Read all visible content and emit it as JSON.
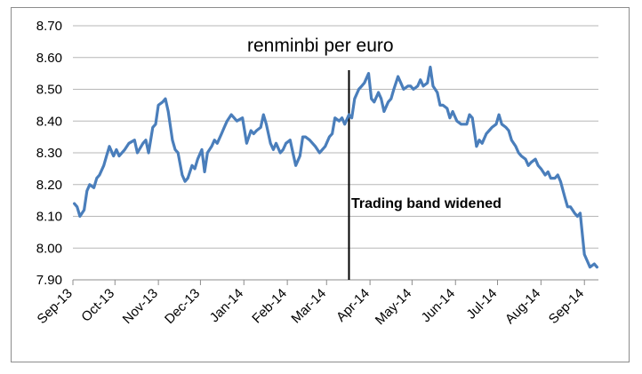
{
  "chart_data": {
    "type": "line",
    "title": "renminbi per euro",
    "xlabel": "",
    "ylabel": "",
    "ylim": [
      7.9,
      8.7
    ],
    "y_ticks": [
      "8.70",
      "8.60",
      "8.50",
      "8.40",
      "8.30",
      "8.20",
      "8.10",
      "8.00",
      "7.90"
    ],
    "x_ticks": [
      "Sep-13",
      "Oct-13",
      "Nov-13",
      "Dec-13",
      "Jan-14",
      "Feb-14",
      "Mar-14",
      "Apr-14",
      "May-14",
      "Jun-14",
      "Jul-14",
      "Aug-14",
      "Sep-14"
    ],
    "grid": true,
    "legend": "none",
    "annotation": {
      "label": "Trading band widened",
      "x": "2014-03-17"
    },
    "series": [
      {
        "color": "#4a7ebb",
        "points": [
          [
            "2013-09-02",
            8.14
          ],
          [
            "2013-09-04",
            8.13
          ],
          [
            "2013-09-06",
            8.1
          ],
          [
            "2013-09-09",
            8.12
          ],
          [
            "2013-09-11",
            8.18
          ],
          [
            "2013-09-13",
            8.2
          ],
          [
            "2013-09-16",
            8.19
          ],
          [
            "2013-09-18",
            8.22
          ],
          [
            "2013-09-20",
            8.23
          ],
          [
            "2013-09-23",
            8.26
          ],
          [
            "2013-09-25",
            8.29
          ],
          [
            "2013-09-27",
            8.32
          ],
          [
            "2013-09-30",
            8.29
          ],
          [
            "2013-10-02",
            8.31
          ],
          [
            "2013-10-04",
            8.29
          ],
          [
            "2013-10-08",
            8.31
          ],
          [
            "2013-10-11",
            8.33
          ],
          [
            "2013-10-15",
            8.34
          ],
          [
            "2013-10-17",
            8.3
          ],
          [
            "2013-10-21",
            8.33
          ],
          [
            "2013-10-23",
            8.34
          ],
          [
            "2013-10-25",
            8.3
          ],
          [
            "2013-10-28",
            8.38
          ],
          [
            "2013-10-30",
            8.39
          ],
          [
            "2013-11-01",
            8.45
          ],
          [
            "2013-11-04",
            8.46
          ],
          [
            "2013-11-06",
            8.47
          ],
          [
            "2013-11-08",
            8.43
          ],
          [
            "2013-11-11",
            8.34
          ],
          [
            "2013-11-13",
            8.31
          ],
          [
            "2013-11-15",
            8.3
          ],
          [
            "2013-11-18",
            8.23
          ],
          [
            "2013-11-20",
            8.21
          ],
          [
            "2013-11-22",
            8.22
          ],
          [
            "2013-11-25",
            8.26
          ],
          [
            "2013-11-27",
            8.25
          ],
          [
            "2013-11-29",
            8.28
          ],
          [
            "2013-12-02",
            8.31
          ],
          [
            "2013-12-04",
            8.24
          ],
          [
            "2013-12-06",
            8.3
          ],
          [
            "2013-12-09",
            8.32
          ],
          [
            "2013-12-11",
            8.34
          ],
          [
            "2013-12-13",
            8.33
          ],
          [
            "2013-12-16",
            8.36
          ],
          [
            "2013-12-18",
            8.38
          ],
          [
            "2013-12-20",
            8.4
          ],
          [
            "2013-12-23",
            8.42
          ],
          [
            "2013-12-27",
            8.4
          ],
          [
            "2013-12-31",
            8.41
          ],
          [
            "2014-01-03",
            8.33
          ],
          [
            "2014-01-06",
            8.37
          ],
          [
            "2014-01-08",
            8.36
          ],
          [
            "2014-01-10",
            8.37
          ],
          [
            "2014-01-13",
            8.38
          ],
          [
            "2014-01-15",
            8.42
          ],
          [
            "2014-01-17",
            8.39
          ],
          [
            "2014-01-20",
            8.33
          ],
          [
            "2014-01-22",
            8.31
          ],
          [
            "2014-01-24",
            8.33
          ],
          [
            "2014-01-27",
            8.3
          ],
          [
            "2014-01-29",
            8.31
          ],
          [
            "2014-01-31",
            8.33
          ],
          [
            "2014-02-03",
            8.34
          ],
          [
            "2014-02-05",
            8.3
          ],
          [
            "2014-02-07",
            8.26
          ],
          [
            "2014-02-10",
            8.29
          ],
          [
            "2014-02-12",
            8.35
          ],
          [
            "2014-02-14",
            8.35
          ],
          [
            "2014-02-17",
            8.34
          ],
          [
            "2014-02-19",
            8.33
          ],
          [
            "2014-02-21",
            8.32
          ],
          [
            "2014-02-24",
            8.3
          ],
          [
            "2014-02-26",
            8.31
          ],
          [
            "2014-02-28",
            8.32
          ],
          [
            "2014-03-03",
            8.35
          ],
          [
            "2014-03-05",
            8.36
          ],
          [
            "2014-03-07",
            8.41
          ],
          [
            "2014-03-10",
            8.4
          ],
          [
            "2014-03-12",
            8.41
          ],
          [
            "2014-03-14",
            8.39
          ],
          [
            "2014-03-17",
            8.42
          ],
          [
            "2014-03-19",
            8.41
          ],
          [
            "2014-03-21",
            8.47
          ],
          [
            "2014-03-24",
            8.5
          ],
          [
            "2014-03-26",
            8.51
          ],
          [
            "2014-03-28",
            8.52
          ],
          [
            "2014-03-31",
            8.55
          ],
          [
            "2014-04-02",
            8.47
          ],
          [
            "2014-04-04",
            8.46
          ],
          [
            "2014-04-07",
            8.49
          ],
          [
            "2014-04-09",
            8.47
          ],
          [
            "2014-04-11",
            8.43
          ],
          [
            "2014-04-14",
            8.46
          ],
          [
            "2014-04-16",
            8.47
          ],
          [
            "2014-04-18",
            8.5
          ],
          [
            "2014-04-21",
            8.54
          ],
          [
            "2014-04-23",
            8.52
          ],
          [
            "2014-04-25",
            8.5
          ],
          [
            "2014-04-28",
            8.51
          ],
          [
            "2014-04-30",
            8.51
          ],
          [
            "2014-05-02",
            8.5
          ],
          [
            "2014-05-05",
            8.51
          ],
          [
            "2014-05-07",
            8.53
          ],
          [
            "2014-05-09",
            8.51
          ],
          [
            "2014-05-12",
            8.52
          ],
          [
            "2014-05-14",
            8.57
          ],
          [
            "2014-05-16",
            8.51
          ],
          [
            "2014-05-19",
            8.49
          ],
          [
            "2014-05-21",
            8.45
          ],
          [
            "2014-05-23",
            8.45
          ],
          [
            "2014-05-26",
            8.44
          ],
          [
            "2014-05-28",
            8.41
          ],
          [
            "2014-05-30",
            8.43
          ],
          [
            "2014-06-02",
            8.4
          ],
          [
            "2014-06-05",
            8.39
          ],
          [
            "2014-06-09",
            8.39
          ],
          [
            "2014-06-11",
            8.42
          ],
          [
            "2014-06-13",
            8.41
          ],
          [
            "2014-06-16",
            8.32
          ],
          [
            "2014-06-18",
            8.34
          ],
          [
            "2014-06-20",
            8.33
          ],
          [
            "2014-06-23",
            8.36
          ],
          [
            "2014-06-25",
            8.37
          ],
          [
            "2014-06-27",
            8.38
          ],
          [
            "2014-06-30",
            8.39
          ],
          [
            "2014-07-02",
            8.42
          ],
          [
            "2014-07-04",
            8.39
          ],
          [
            "2014-07-07",
            8.38
          ],
          [
            "2014-07-09",
            8.37
          ],
          [
            "2014-07-11",
            8.34
          ],
          [
            "2014-07-14",
            8.32
          ],
          [
            "2014-07-16",
            8.3
          ],
          [
            "2014-07-18",
            8.29
          ],
          [
            "2014-07-21",
            8.28
          ],
          [
            "2014-07-23",
            8.26
          ],
          [
            "2014-07-25",
            8.27
          ],
          [
            "2014-07-28",
            8.28
          ],
          [
            "2014-07-30",
            8.26
          ],
          [
            "2014-08-01",
            8.25
          ],
          [
            "2014-08-04",
            8.23
          ],
          [
            "2014-08-06",
            8.24
          ],
          [
            "2014-08-08",
            8.22
          ],
          [
            "2014-08-11",
            8.22
          ],
          [
            "2014-08-13",
            8.23
          ],
          [
            "2014-08-15",
            8.21
          ],
          [
            "2014-08-18",
            8.16
          ],
          [
            "2014-08-20",
            8.13
          ],
          [
            "2014-08-22",
            8.13
          ],
          [
            "2014-08-25",
            8.11
          ],
          [
            "2014-08-27",
            8.1
          ],
          [
            "2014-08-29",
            8.11
          ],
          [
            "2014-09-01",
            7.98
          ],
          [
            "2014-09-03",
            7.96
          ],
          [
            "2014-09-05",
            7.94
          ],
          [
            "2014-09-08",
            7.95
          ],
          [
            "2014-09-10",
            7.94
          ]
        ]
      }
    ]
  }
}
